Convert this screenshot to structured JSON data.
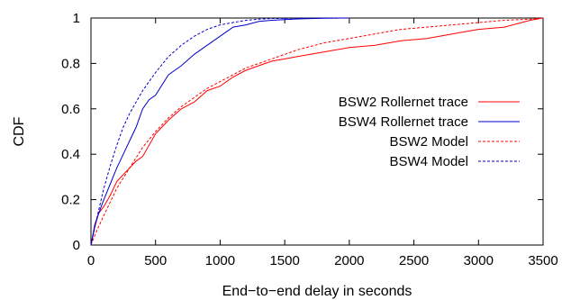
{
  "chart_data": {
    "type": "line",
    "xlabel": "End−to−end delay in seconds",
    "ylabel": "CDF",
    "xlim": [
      0,
      3500
    ],
    "ylim": [
      0,
      1
    ],
    "xticks": [
      "0",
      "500",
      "1000",
      "1500",
      "2000",
      "2500",
      "3000",
      "3500"
    ],
    "yticks": [
      "0",
      "0.2",
      "0.4",
      "0.6",
      "0.8",
      "1"
    ],
    "grid": false,
    "legend_position": "right",
    "series": [
      {
        "name": "BSW2 Rollernet trace",
        "color": "#ff0000",
        "style": "solid",
        "x": [
          0,
          30,
          60,
          100,
          150,
          200,
          250,
          300,
          350,
          400,
          500,
          600,
          700,
          800,
          900,
          1000,
          1100,
          1200,
          1300,
          1400,
          1500,
          1600,
          1700,
          1800,
          1900,
          2000,
          2200,
          2400,
          2600,
          2800,
          3000,
          3200,
          3400,
          3500
        ],
        "y": [
          0,
          0.08,
          0.14,
          0.17,
          0.22,
          0.28,
          0.31,
          0.34,
          0.37,
          0.39,
          0.49,
          0.55,
          0.6,
          0.63,
          0.68,
          0.7,
          0.74,
          0.77,
          0.79,
          0.81,
          0.82,
          0.83,
          0.84,
          0.85,
          0.86,
          0.87,
          0.88,
          0.9,
          0.91,
          0.93,
          0.95,
          0.96,
          0.99,
          1.0
        ]
      },
      {
        "name": "BSW4 Rollernet trace",
        "color": "#0000cc",
        "style": "solid",
        "x": [
          0,
          30,
          60,
          100,
          150,
          200,
          250,
          300,
          350,
          400,
          450,
          500,
          600,
          700,
          800,
          900,
          1000,
          1100,
          1200,
          1300,
          1400,
          1500,
          1600,
          1800,
          2000
        ],
        "y": [
          0,
          0.09,
          0.14,
          0.2,
          0.27,
          0.34,
          0.4,
          0.46,
          0.52,
          0.6,
          0.64,
          0.66,
          0.75,
          0.79,
          0.84,
          0.88,
          0.92,
          0.96,
          0.97,
          0.985,
          0.99,
          0.993,
          0.996,
          0.999,
          1.0
        ]
      },
      {
        "name": "BSW2 Model",
        "color": "#ff0000",
        "style": "dashed",
        "x": [
          0,
          50,
          100,
          200,
          300,
          400,
          500,
          600,
          700,
          800,
          900,
          1000,
          1200,
          1400,
          1600,
          1800,
          2000,
          2200,
          2400,
          2600,
          2800,
          3000,
          3200,
          3400,
          3500
        ],
        "y": [
          0,
          0.07,
          0.13,
          0.25,
          0.34,
          0.43,
          0.5,
          0.56,
          0.61,
          0.65,
          0.69,
          0.72,
          0.78,
          0.82,
          0.86,
          0.89,
          0.91,
          0.93,
          0.95,
          0.96,
          0.97,
          0.98,
          0.99,
          0.995,
          1.0
        ]
      },
      {
        "name": "BSW4 Model",
        "color": "#0000cc",
        "style": "dashed",
        "x": [
          0,
          50,
          100,
          150,
          200,
          250,
          300,
          400,
          500,
          600,
          700,
          800,
          900,
          1000,
          1100,
          1200,
          1300,
          1400,
          1600,
          2000
        ],
        "y": [
          0,
          0.13,
          0.25,
          0.35,
          0.44,
          0.52,
          0.58,
          0.68,
          0.76,
          0.83,
          0.88,
          0.92,
          0.95,
          0.97,
          0.98,
          0.99,
          0.995,
          0.998,
          0.999,
          1.0
        ]
      }
    ]
  }
}
